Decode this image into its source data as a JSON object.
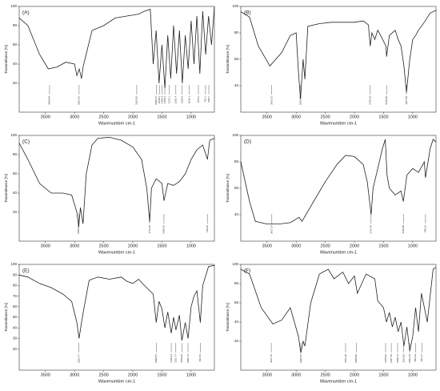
{
  "chart_data": [
    {
      "type": "line",
      "title": "(A)",
      "xlabel": "Wavenumber cm-1",
      "ylabel": "Transmittance [%]",
      "color": "#222222",
      "xlim": [
        3950,
        600
      ],
      "xticks": [
        3500,
        3000,
        2500,
        2000,
        1500,
        1000
      ],
      "ylim": [
        -10,
        100
      ],
      "yticks": [
        20,
        40,
        60,
        80,
        100
      ],
      "x": [
        3950,
        3800,
        3600,
        3450,
        3300,
        3150,
        3000,
        2960,
        2920,
        2880,
        2850,
        2700,
        2500,
        2300,
        2100,
        1900,
        1800,
        1700,
        1650,
        1600,
        1550,
        1500,
        1450,
        1400,
        1350,
        1300,
        1250,
        1200,
        1150,
        1100,
        1050,
        1000,
        950,
        900,
        850,
        800,
        750,
        700,
        650,
        600
      ],
      "values": [
        88,
        80,
        50,
        35,
        37,
        42,
        40,
        28,
        35,
        25,
        38,
        75,
        80,
        88,
        90,
        92,
        95,
        97,
        40,
        75,
        20,
        60,
        15,
        70,
        25,
        80,
        30,
        75,
        20,
        70,
        35,
        85,
        40,
        90,
        30,
        95,
        50,
        90,
        60,
        100
      ],
      "peaks": [
        3428.94,
        2921.63,
        1932.66,
        1598.27,
        1545.2,
        1496.4,
        1450.3,
        1372.1,
        1261.4,
        1155.6,
        1032.1,
        874.2,
        752.1,
        695.7
      ]
    },
    {
      "type": "line",
      "title": "(B)",
      "xlabel": "Wavenumber cm-1",
      "ylabel": "Transmittance [%]",
      "color": "#222222",
      "xlim": [
        3950,
        600
      ],
      "xticks": [
        3500,
        3000,
        2500,
        2000,
        1500,
        1000
      ],
      "ylim": [
        20,
        100
      ],
      "yticks": [
        40,
        60,
        80,
        100
      ],
      "x": [
        3950,
        3800,
        3650,
        3450,
        3250,
        3100,
        3000,
        2960,
        2926,
        2880,
        2850,
        2800,
        2600,
        2400,
        2200,
        2000,
        1850,
        1760,
        1728,
        1700,
        1650,
        1600,
        1550,
        1460,
        1448,
        1400,
        1300,
        1250,
        1200,
        1150,
        1107,
        1050,
        1000,
        950,
        900,
        800,
        700,
        600
      ],
      "values": [
        96,
        92,
        70,
        55,
        65,
        78,
        80,
        50,
        30,
        60,
        45,
        85,
        87,
        88,
        88,
        88,
        89,
        86,
        70,
        80,
        75,
        82,
        78,
        70,
        62,
        78,
        82,
        75,
        70,
        55,
        35,
        60,
        75,
        78,
        82,
        88,
        95,
        97
      ],
      "peaks": [
        3419.72,
        2926.25,
        1728.33,
        1448.55,
        1107.85
      ]
    },
    {
      "type": "line",
      "title": "(C)",
      "xlabel": "Wavenumber cm-1",
      "ylabel": "Transmittance [%]",
      "color": "#222222",
      "xlim": [
        3950,
        600
      ],
      "xticks": [
        3500,
        3000,
        2500,
        2000,
        1500,
        1000
      ],
      "ylim": [
        -10,
        100
      ],
      "yticks": [
        20,
        40,
        60,
        80,
        100
      ],
      "x": [
        3950,
        3800,
        3600,
        3400,
        3200,
        3050,
        2960,
        2928,
        2900,
        2855,
        2800,
        2700,
        2600,
        2400,
        2200,
        2000,
        1850,
        1760,
        1711,
        1680,
        1600,
        1500,
        1465,
        1400,
        1300,
        1200,
        1100,
        1000,
        900,
        800,
        720,
        680,
        600
      ],
      "values": [
        92,
        75,
        50,
        40,
        40,
        38,
        20,
        5,
        25,
        8,
        60,
        90,
        97,
        98,
        95,
        88,
        75,
        45,
        10,
        45,
        55,
        50,
        32,
        50,
        48,
        52,
        60,
        75,
        85,
        90,
        75,
        95,
        97
      ],
      "peaks": [
        2928.94,
        1711.52,
        1465.62,
        720.94
      ]
    },
    {
      "type": "line",
      "title": "(D)",
      "xlabel": "Wavenumber cm-1",
      "ylabel": "Transmittance [%]",
      "color": "#222222",
      "xlim": [
        3950,
        600
      ],
      "xticks": [
        3500,
        3000,
        2500,
        2000,
        1500,
        1000
      ],
      "ylim": [
        20,
        100
      ],
      "yticks": [
        40,
        60,
        80,
        100
      ],
      "x": [
        3950,
        3800,
        3700,
        3500,
        3300,
        3100,
        2950,
        2900,
        2700,
        2500,
        2300,
        2150,
        2000,
        1850,
        1780,
        1714,
        1680,
        1600,
        1520,
        1470,
        1440,
        1400,
        1300,
        1200,
        1160,
        1100,
        1000,
        900,
        800,
        780,
        700,
        650,
        600
      ],
      "values": [
        80,
        50,
        35,
        33,
        33,
        34,
        38,
        35,
        50,
        65,
        78,
        85,
        84,
        78,
        65,
        40,
        60,
        75,
        90,
        97,
        70,
        60,
        55,
        58,
        50,
        70,
        75,
        72,
        80,
        68,
        90,
        97,
        95
      ],
      "peaks": [
        3417.14,
        1714.75,
        1160.08,
        780.12
      ]
    },
    {
      "type": "line",
      "title": "(E)",
      "xlabel": "Wavenumber cm-1",
      "ylabel": "Transmittance [%]",
      "color": "#222222",
      "xlim": [
        3950,
        600
      ],
      "xticks": [
        3500,
        3000,
        2500,
        2000,
        1500,
        1000
      ],
      "ylim": [
        0,
        100
      ],
      "yticks": [
        20,
        30,
        40,
        50,
        60,
        70,
        80,
        90,
        100
      ],
      "x": [
        3950,
        3800,
        3600,
        3400,
        3200,
        3050,
        2960,
        2923,
        2880,
        2850,
        2750,
        2600,
        2400,
        2200,
        2100,
        2000,
        1900,
        1800,
        1650,
        1598,
        1550,
        1500,
        1450,
        1400,
        1340,
        1300,
        1261,
        1200,
        1159,
        1100,
        1052,
        1000,
        950,
        900,
        841,
        800,
        700,
        600
      ],
      "values": [
        90,
        88,
        82,
        78,
        72,
        65,
        45,
        30,
        45,
        55,
        85,
        88,
        86,
        88,
        84,
        82,
        86,
        80,
        72,
        45,
        65,
        58,
        40,
        55,
        35,
        50,
        38,
        52,
        28,
        45,
        30,
        60,
        70,
        75,
        45,
        80,
        98,
        99
      ],
      "peaks": [
        2923.77,
        1598.57,
        1340.34,
        1261.77,
        1159.05,
        1052.74,
        841.53
      ]
    },
    {
      "type": "line",
      "title": "(F)",
      "xlabel": "Wavenumber cm-1",
      "ylabel": "Transmittance [%]",
      "color": "#222222",
      "xlim": [
        3950,
        600
      ],
      "xticks": [
        3500,
        3000,
        2500,
        2000,
        1500,
        1000
      ],
      "ylim": [
        -10,
        100
      ],
      "yticks": [
        20,
        40,
        60,
        80,
        100
      ],
      "x": [
        3950,
        3800,
        3600,
        3400,
        3250,
        3100,
        2960,
        2920,
        2880,
        2850,
        2750,
        2600,
        2450,
        2350,
        2200,
        2100,
        2000,
        1950,
        1800,
        1650,
        1600,
        1500,
        1450,
        1400,
        1350,
        1300,
        1250,
        1200,
        1150,
        1100,
        1050,
        1000,
        950,
        900,
        850,
        750,
        650,
        600
      ],
      "values": [
        95,
        90,
        55,
        38,
        42,
        55,
        25,
        8,
        20,
        15,
        60,
        90,
        95,
        85,
        92,
        80,
        88,
        70,
        90,
        85,
        62,
        55,
        40,
        50,
        35,
        45,
        30,
        40,
        15,
        35,
        10,
        25,
        55,
        30,
        70,
        40,
        95,
        97
      ],
      "peaks": [
        3427.12,
        2920.54,
        2151.48,
        1968.82,
        1465.02,
        1367.15,
        1258.74,
        1153.92,
        1052.18,
        952.23,
        841.47
      ]
    }
  ]
}
